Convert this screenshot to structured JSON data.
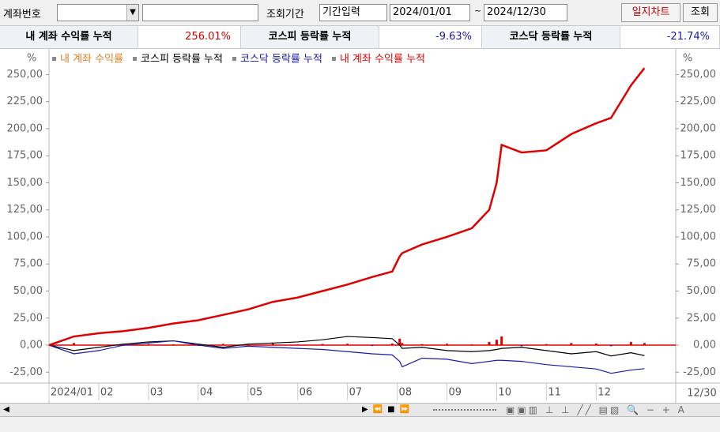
{
  "toolbar": {
    "account_label": "계좌번호",
    "period_label": "조회기간",
    "period_mode": "기간입력",
    "start_date": "2024/01/01",
    "tilde": "~",
    "end_date": "2024/12/30",
    "journal_button": "일지차트",
    "search_button": "조회"
  },
  "summary": [
    {
      "label": "내 계좌 수익률 누적",
      "value": "256.01%"
    },
    {
      "label": "코스피 등락률 누적",
      "value": "-9.63%"
    },
    {
      "label": "코스닥 등락률 누적",
      "value": "-21.74%"
    }
  ],
  "chart_data": {
    "type": "line",
    "y_unit": "%",
    "x_end_label": "12/30",
    "x": [
      1,
      1.5,
      2,
      2.5,
      3,
      3.5,
      4,
      4.5,
      5,
      5.5,
      6,
      6.5,
      7,
      7.5,
      7.9,
      8.05,
      8.1,
      8.5,
      9,
      9.5,
      9.85,
      10,
      10.1,
      10.5,
      11,
      11.5,
      12,
      12.3,
      12.7,
      12.97
    ],
    "xlim": [
      1,
      13.6
    ],
    "xticks": [
      {
        "value": 1,
        "label": "2024/01"
      },
      {
        "value": 2,
        "label": "02"
      },
      {
        "value": 3,
        "label": "03"
      },
      {
        "value": 4,
        "label": "04"
      },
      {
        "value": 5,
        "label": "05"
      },
      {
        "value": 6,
        "label": "06"
      },
      {
        "value": 7,
        "label": "07"
      },
      {
        "value": 8,
        "label": "08"
      },
      {
        "value": 9,
        "label": "09"
      },
      {
        "value": 10,
        "label": "10"
      },
      {
        "value": 11,
        "label": "11"
      },
      {
        "value": 12,
        "label": "12"
      }
    ],
    "ylim": [
      -35,
      270
    ],
    "yticks": [
      {
        "value": -25,
        "label": "-25,00"
      },
      {
        "value": 0,
        "label": "0,00"
      },
      {
        "value": 25,
        "label": "25,00"
      },
      {
        "value": 50,
        "label": "50,00"
      },
      {
        "value": 75,
        "label": "75,00"
      },
      {
        "value": 100,
        "label": "100,00"
      },
      {
        "value": 125,
        "label": "125,00"
      },
      {
        "value": 150,
        "label": "150,00"
      },
      {
        "value": 175,
        "label": "175,00"
      },
      {
        "value": 200,
        "label": "200,00"
      },
      {
        "value": 225,
        "label": "225,00"
      },
      {
        "value": 250,
        "label": "250,00"
      }
    ],
    "zero_line_color": "#e00000",
    "bar_colors": {
      "positive": "#e00000",
      "negative": "#2020c0"
    },
    "series": [
      {
        "name": "내 계좌 수익률",
        "color": "#e08020",
        "style": "bar",
        "values": [
          0,
          2,
          0.5,
          -0.5,
          1,
          0.8,
          -0.6,
          1.2,
          0.9,
          1.5,
          0.7,
          1.1,
          1.3,
          -0.8,
          1.5,
          6,
          2,
          1,
          1.3,
          0.8,
          3,
          5,
          8,
          -1,
          1,
          2,
          1.5,
          -1,
          3,
          2
        ]
      },
      {
        "name": "코스피 등락률 누적",
        "color": "#000000",
        "style": "line",
        "values": [
          0,
          -5,
          -2,
          1,
          3,
          4,
          1,
          -2,
          1,
          2,
          3,
          5,
          8,
          7,
          6,
          0,
          -3,
          -2,
          -5,
          -6,
          -5,
          -4,
          -3,
          -2,
          -5,
          -8,
          -6,
          -10,
          -7,
          -9.63
        ]
      },
      {
        "name": "코스닥 등락률 누적",
        "color": "#1a1aa8",
        "style": "line",
        "values": [
          0,
          -8,
          -5,
          0,
          2,
          4,
          0,
          -3,
          -1,
          -2,
          -3,
          -4,
          -6,
          -8,
          -9,
          -15,
          -20,
          -12,
          -13,
          -17,
          -15,
          -14,
          -14,
          -15,
          -18,
          -20,
          -22,
          -26,
          -23,
          -21.74
        ]
      },
      {
        "name": "내 계좌 수익률 누적",
        "color": "#e00000",
        "style": "line",
        "width": 2.5,
        "values": [
          0,
          8,
          11,
          13,
          16,
          20,
          23,
          28,
          33,
          40,
          44,
          50,
          56,
          63,
          68,
          82,
          85,
          93,
          100,
          108,
          125,
          150,
          185,
          178,
          180,
          195,
          205,
          210,
          240,
          256.01
        ]
      }
    ]
  }
}
